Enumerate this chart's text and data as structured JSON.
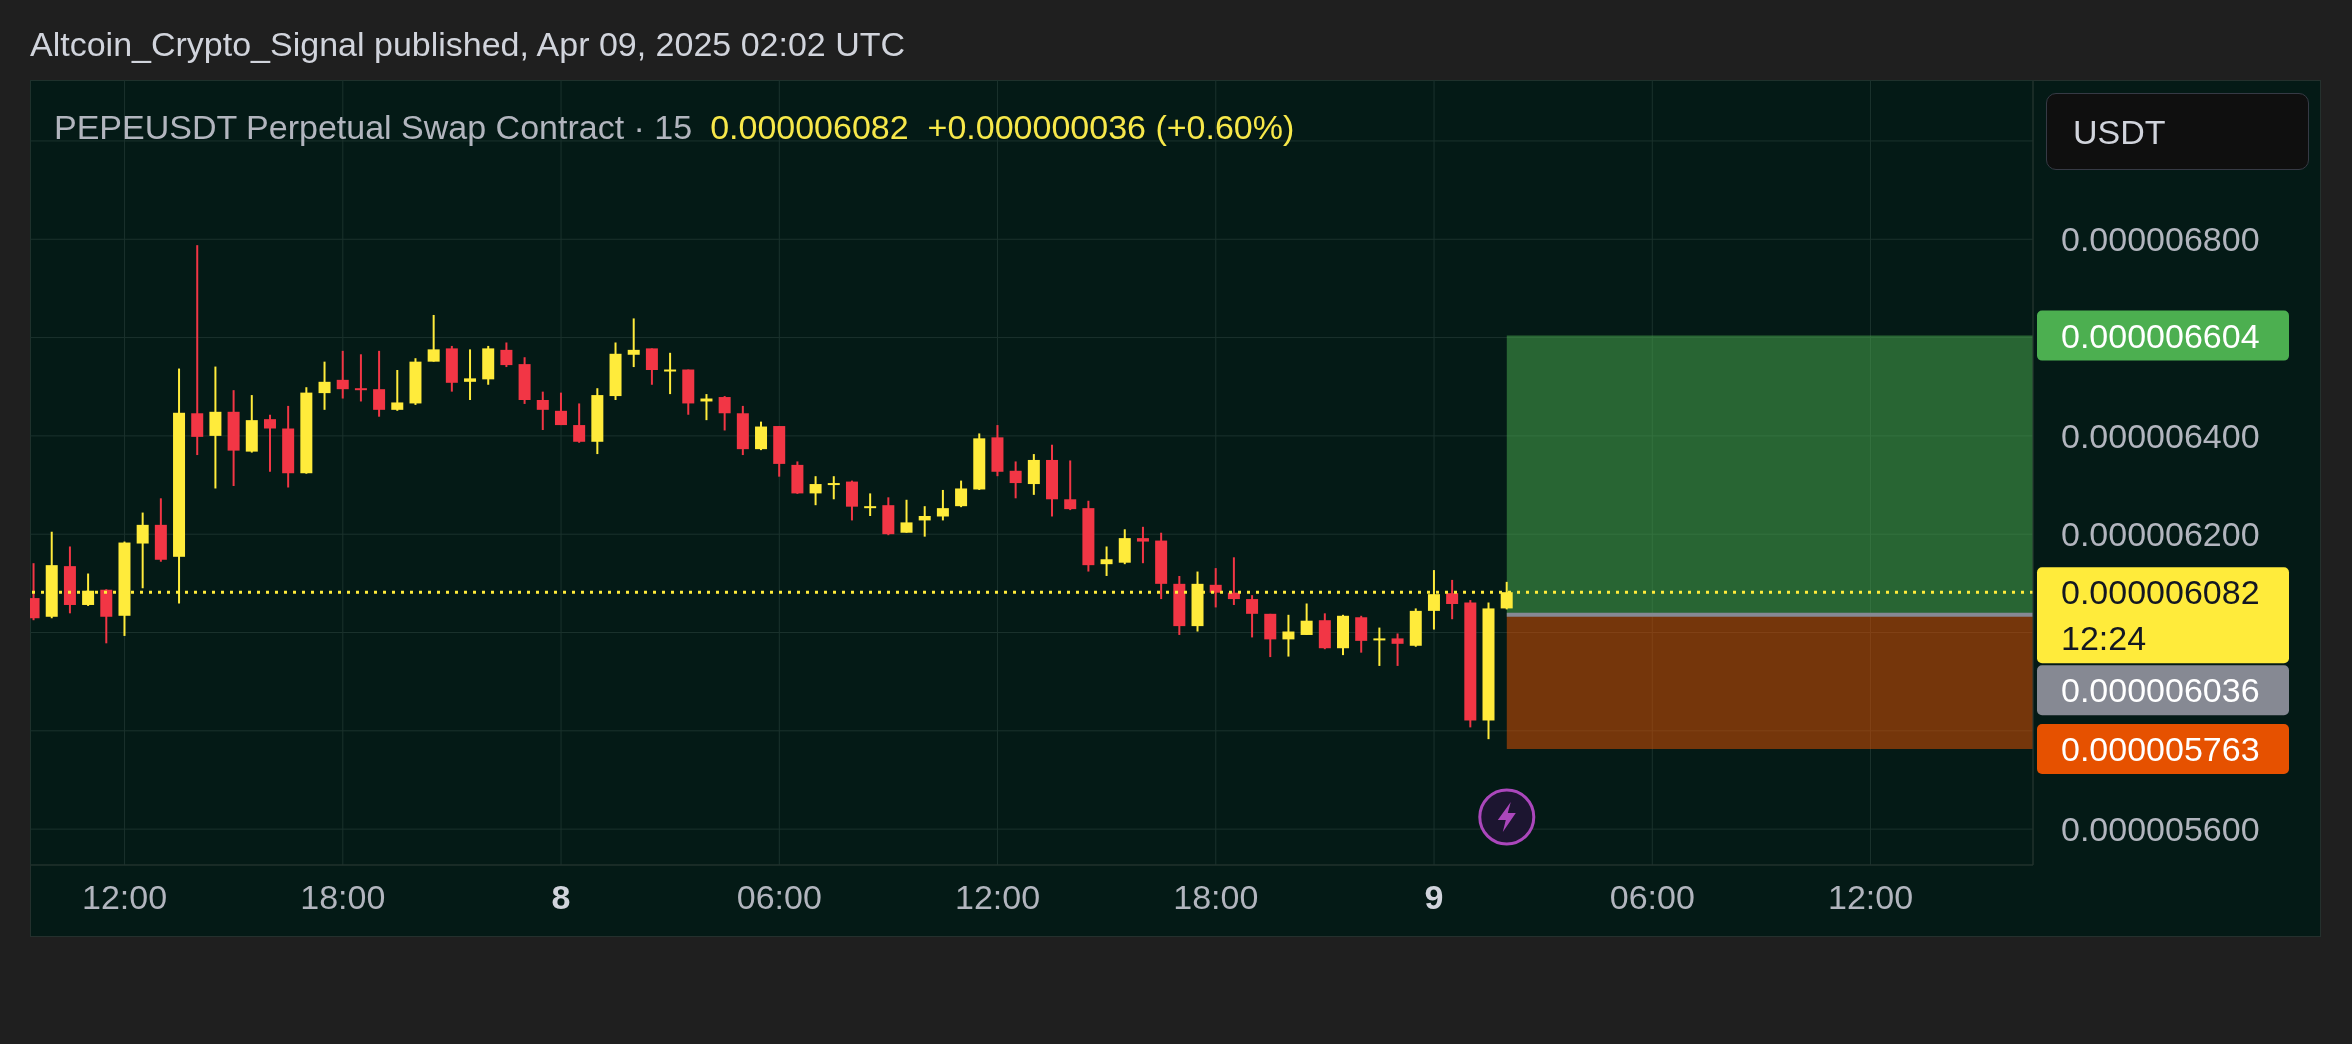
{
  "chart_data": {
    "type": "candlestick",
    "title": "PEPEUSDT Perpetual Swap Contract · 15",
    "subtitle": "0.000006082  +0.000000036 (+0.60%)",
    "ylabel": "USDT",
    "annotations": [
      "Altcoin_Crypto_Signal published, Apr 09, 2025 02:02 UTC"
    ],
    "x": [
      "2025-04-07T09:30",
      "2025-04-07T10:00",
      "2025-04-07T10:30",
      "2025-04-07T11:00",
      "2025-04-07T11:30",
      "2025-04-07T12:00",
      "2025-04-07T12:30",
      "2025-04-07T13:00",
      "2025-04-07T13:30",
      "2025-04-07T14:00",
      "2025-04-07T14:30",
      "2025-04-07T15:00",
      "2025-04-07T15:30",
      "2025-04-07T16:00",
      "2025-04-07T16:30",
      "2025-04-07T17:00",
      "2025-04-07T17:30",
      "2025-04-07T18:00",
      "2025-04-07T18:30",
      "2025-04-07T19:00",
      "2025-04-07T19:30",
      "2025-04-07T20:00",
      "2025-04-07T20:30",
      "2025-04-07T21:00",
      "2025-04-07T21:30",
      "2025-04-07T22:00",
      "2025-04-07T22:30",
      "2025-04-07T23:00",
      "2025-04-07T23:30",
      "2025-04-08T00:00",
      "2025-04-08T00:30",
      "2025-04-08T01:00",
      "2025-04-08T01:30",
      "2025-04-08T02:00",
      "2025-04-08T02:30",
      "2025-04-08T03:00",
      "2025-04-08T03:30",
      "2025-04-08T04:00",
      "2025-04-08T04:30",
      "2025-04-08T05:00",
      "2025-04-08T05:30",
      "2025-04-08T06:00",
      "2025-04-08T06:30",
      "2025-04-08T07:00",
      "2025-04-08T07:30",
      "2025-04-08T08:00",
      "2025-04-08T08:30",
      "2025-04-08T09:00",
      "2025-04-08T09:30",
      "2025-04-08T10:00",
      "2025-04-08T10:30",
      "2025-04-08T11:00",
      "2025-04-08T11:30",
      "2025-04-08T12:00",
      "2025-04-08T12:30",
      "2025-04-08T13:00",
      "2025-04-08T13:30",
      "2025-04-08T14:00",
      "2025-04-08T14:30",
      "2025-04-08T15:00",
      "2025-04-08T15:30",
      "2025-04-08T16:00",
      "2025-04-08T16:30",
      "2025-04-08T17:00",
      "2025-04-08T17:30",
      "2025-04-08T18:00",
      "2025-04-08T18:30",
      "2025-04-08T19:00",
      "2025-04-08T19:30",
      "2025-04-08T20:00",
      "2025-04-08T20:30",
      "2025-04-08T21:00",
      "2025-04-08T21:30",
      "2025-04-08T22:00",
      "2025-04-08T22:30",
      "2025-04-08T23:00",
      "2025-04-08T23:30",
      "2025-04-09T00:00",
      "2025-04-09T00:30",
      "2025-04-09T01:00",
      "2025-04-09T01:30",
      "2025-04-09T02:00"
    ],
    "ohlc": [
      [
        6.07e-06,
        6.141e-06,
        6.025e-06,
        6.029e-06
      ],
      [
        6.032e-06,
        6.205e-06,
        6.029e-06,
        6.137e-06
      ],
      [
        6.135e-06,
        6.175e-06,
        6.039e-06,
        6.056e-06
      ],
      [
        6.056e-06,
        6.12e-06,
        6.054e-06,
        6.085e-06
      ],
      [
        6.087e-06,
        6.088e-06,
        5.978e-06,
        6.032e-06
      ],
      [
        6.034e-06,
        6.185e-06,
        5.993e-06,
        6.183e-06
      ],
      [
        6.181e-06,
        6.244e-06,
        6.09e-06,
        6.219e-06
      ],
      [
        6.219e-06,
        6.273e-06,
        6.144e-06,
        6.148e-06
      ],
      [
        6.154e-06,
        6.537e-06,
        6.059e-06,
        6.447e-06
      ],
      [
        6.446e-06,
        6.788e-06,
        6.361e-06,
        6.398e-06
      ],
      [
        6.4e-06,
        6.541e-06,
        6.293e-06,
        6.449e-06
      ],
      [
        6.449e-06,
        6.493e-06,
        6.298e-06,
        6.37e-06
      ],
      [
        6.368e-06,
        6.483e-06,
        6.366e-06,
        6.432e-06
      ],
      [
        6.434e-06,
        6.443e-06,
        6.327e-06,
        6.415e-06
      ],
      [
        6.415e-06,
        6.461e-06,
        6.295e-06,
        6.324e-06
      ],
      [
        6.324e-06,
        6.499e-06,
        6.323e-06,
        6.488e-06
      ],
      [
        6.487e-06,
        6.551e-06,
        6.453e-06,
        6.51e-06
      ],
      [
        6.514e-06,
        6.573e-06,
        6.476e-06,
        6.495e-06
      ],
      [
        6.497e-06,
        6.566e-06,
        6.47e-06,
        6.493e-06
      ],
      [
        6.495e-06,
        6.573e-06,
        6.439e-06,
        6.453e-06
      ],
      [
        6.453e-06,
        6.534e-06,
        6.451e-06,
        6.468e-06
      ],
      [
        6.466e-06,
        6.558e-06,
        6.463e-06,
        6.551e-06
      ],
      [
        6.551e-06,
        6.646e-06,
        6.551e-06,
        6.576e-06
      ],
      [
        6.578e-06,
        6.583e-06,
        6.49e-06,
        6.508e-06
      ],
      [
        6.51e-06,
        6.576e-06,
        6.473e-06,
        6.517e-06
      ],
      [
        6.515e-06,
        6.583e-06,
        6.504e-06,
        6.578e-06
      ],
      [
        6.575e-06,
        6.59e-06,
        6.54e-06,
        6.544e-06
      ],
      [
        6.546e-06,
        6.56e-06,
        6.465e-06,
        6.473e-06
      ],
      [
        6.473e-06,
        6.49e-06,
        6.412e-06,
        6.453e-06
      ],
      [
        6.451e-06,
        6.488e-06,
        6.422e-06,
        6.422e-06
      ],
      [
        6.422e-06,
        6.466e-06,
        6.386e-06,
        6.388e-06
      ],
      [
        6.388e-06,
        6.497e-06,
        6.363e-06,
        6.483e-06
      ],
      [
        6.481e-06,
        6.59e-06,
        6.473e-06,
        6.567e-06
      ],
      [
        6.565e-06,
        6.639e-06,
        6.54e-06,
        6.575e-06
      ],
      [
        6.578e-06,
        6.578e-06,
        6.504e-06,
        6.534e-06
      ],
      [
        6.531e-06,
        6.569e-06,
        6.485e-06,
        6.535e-06
      ],
      [
        6.535e-06,
        6.535e-06,
        6.443e-06,
        6.466e-06
      ],
      [
        6.47e-06,
        6.485e-06,
        6.432e-06,
        6.476e-06
      ],
      [
        6.479e-06,
        6.481e-06,
        6.411e-06,
        6.446e-06
      ],
      [
        6.446e-06,
        6.461e-06,
        6.361e-06,
        6.373e-06
      ],
      [
        6.373e-06,
        6.429e-06,
        6.371e-06,
        6.419e-06
      ],
      [
        6.42e-06,
        6.42e-06,
        6.317e-06,
        6.343e-06
      ],
      [
        6.341e-06,
        6.348e-06,
        6.282e-06,
        6.283e-06
      ],
      [
        6.283e-06,
        6.318e-06,
        6.259e-06,
        6.302e-06
      ],
      [
        6.304e-06,
        6.318e-06,
        6.271e-06,
        6.304e-06
      ],
      [
        6.307e-06,
        6.309e-06,
        6.228e-06,
        6.256e-06
      ],
      [
        6.253e-06,
        6.283e-06,
        6.237e-06,
        6.257e-06
      ],
      [
        6.259e-06,
        6.275e-06,
        6.198e-06,
        6.2e-06
      ],
      [
        6.203e-06,
        6.27e-06,
        6.203e-06,
        6.224e-06
      ],
      [
        6.228e-06,
        6.257e-06,
        6.195e-06,
        6.237e-06
      ],
      [
        6.236e-06,
        6.29e-06,
        6.228e-06,
        6.253e-06
      ],
      [
        6.257e-06,
        6.309e-06,
        6.255e-06,
        6.293e-06
      ],
      [
        6.291e-06,
        6.405e-06,
        6.29e-06,
        6.395e-06
      ],
      [
        6.397e-06,
        6.422e-06,
        6.318e-06,
        6.327e-06
      ],
      [
        6.329e-06,
        6.348e-06,
        6.273e-06,
        6.304e-06
      ],
      [
        6.302e-06,
        6.363e-06,
        6.28e-06,
        6.351e-06
      ],
      [
        6.351e-06,
        6.382e-06,
        6.236e-06,
        6.271e-06
      ],
      [
        6.271e-06,
        6.35e-06,
        6.249e-06,
        6.251e-06
      ],
      [
        6.253e-06,
        6.268e-06,
        6.124e-06,
        6.137e-06
      ],
      [
        6.139e-06,
        6.175e-06,
        6.115e-06,
        6.149e-06
      ],
      [
        6.142e-06,
        6.21e-06,
        6.139e-06,
        6.192e-06
      ],
      [
        6.192e-06,
        6.215e-06,
        6.141e-06,
        6.185e-06
      ],
      [
        6.187e-06,
        6.203e-06,
        6.068e-06,
        6.099e-06
      ],
      [
        6.099e-06,
        6.115e-06,
        5.995e-06,
        6.013e-06
      ],
      [
        6.013e-06,
        6.124e-06,
        6.002e-06,
        6.099e-06
      ],
      [
        6.097e-06,
        6.131e-06,
        6.051e-06,
        6.081e-06
      ],
      [
        6.081e-06,
        6.153e-06,
        6.056e-06,
        6.068e-06
      ],
      [
        6.068e-06,
        6.076e-06,
        5.99e-06,
        6.038e-06
      ],
      [
        6.038e-06,
        6.038e-06,
        5.95e-06,
        5.986e-06
      ],
      [
        5.986e-06,
        6.036e-06,
        5.951e-06,
        6.002e-06
      ],
      [
        5.995e-06,
        6.059e-06,
        5.995e-06,
        6.024e-06
      ],
      [
        6.025e-06,
        6.039e-06,
        5.966e-06,
        5.968e-06
      ],
      [
        5.968e-06,
        6.036e-06,
        5.954e-06,
        6.034e-06
      ],
      [
        6.031e-06,
        6.034e-06,
        5.959e-06,
        5.983e-06
      ],
      [
        5.986e-06,
        6.01e-06,
        5.932e-06,
        5.988e-06
      ],
      [
        5.988e-06,
        5.998e-06,
        5.932e-06,
        5.977e-06
      ],
      [
        5.973e-06,
        6.049e-06,
        5.971e-06,
        6.044e-06
      ],
      [
        6.044e-06,
        6.127e-06,
        6.006e-06,
        6.078e-06
      ],
      [
        6.08e-06,
        6.107e-06,
        6.027e-06,
        6.058e-06
      ],
      [
        6.061e-06,
        6.066e-06,
        5.807e-06,
        5.821e-06
      ],
      [
        5.821e-06,
        6.061e-06,
        5.783e-06,
        6.049e-06
      ],
      [
        6.049e-06,
        6.103e-06,
        6.047e-06,
        6.082e-06
      ]
    ],
    "colors": [
      "#f23645",
      "#ffeb3b",
      "#f23645",
      "#ffeb3b",
      "#f23645",
      "#ffeb3b",
      "#ffeb3b",
      "#f23645",
      "#ffeb3b",
      "#f23645",
      "#ffeb3b",
      "#f23645",
      "#ffeb3b",
      "#f23645",
      "#f23645",
      "#ffeb3b",
      "#ffeb3b",
      "#f23645",
      "#f23645",
      "#f23645",
      "#ffeb3b",
      "#ffeb3b",
      "#ffeb3b",
      "#f23645",
      "#ffeb3b",
      "#ffeb3b",
      "#f23645",
      "#f23645",
      "#f23645",
      "#f23645",
      "#f23645",
      "#ffeb3b",
      "#ffeb3b",
      "#ffeb3b",
      "#f23645",
      "#ffeb3b",
      "#f23645",
      "#ffeb3b",
      "#f23645",
      "#f23645",
      "#ffeb3b",
      "#f23645",
      "#f23645",
      "#ffeb3b",
      "#ffeb3b",
      "#f23645",
      "#ffeb3b",
      "#f23645",
      "#ffeb3b",
      "#ffeb3b",
      "#ffeb3b",
      "#ffeb3b",
      "#ffeb3b",
      "#f23645",
      "#f23645",
      "#ffeb3b",
      "#f23645",
      "#f23645",
      "#f23645",
      "#ffeb3b",
      "#ffeb3b",
      "#f23645",
      "#f23645",
      "#f23645",
      "#ffeb3b",
      "#f23645",
      "#f23645",
      "#f23645",
      "#f23645",
      "#ffeb3b",
      "#ffeb3b",
      "#f23645",
      "#ffeb3b",
      "#f23645",
      "#ffeb3b",
      "#f23645",
      "#ffeb3b",
      "#ffeb3b",
      "#f23645",
      "#f23645",
      "#ffeb3b",
      "#ffeb3b"
    ],
    "xlim": [
      "2025-04-07T09:24",
      "2025-04-09T16:28"
    ],
    "xticks": [
      {
        "value": "2025-04-07T12:00",
        "label": "12:00"
      },
      {
        "value": "2025-04-07T18:00",
        "label": "18:00"
      },
      {
        "value": "2025-04-08T00:00",
        "label": "8"
      },
      {
        "value": "2025-04-08T06:00",
        "label": "06:00"
      },
      {
        "value": "2025-04-08T12:00",
        "label": "12:00"
      },
      {
        "value": "2025-04-08T18:00",
        "label": "18:00"
      },
      {
        "value": "2025-04-09T00:00",
        "label": "9"
      },
      {
        "value": "2025-04-09T06:00",
        "label": "06:00"
      },
      {
        "value": "2025-04-09T12:00",
        "label": "12:00"
      }
    ],
    "ylim": [
      5.527e-06,
      7.124e-06
    ],
    "yticks": [
      {
        "value": 5.6e-06,
        "label": "0.000005600"
      },
      {
        "value": 5.8e-06,
        "label": null
      },
      {
        "value": 6e-06,
        "label": null
      },
      {
        "value": 6.2e-06,
        "label": "0.000006200"
      },
      {
        "value": 6.4e-06,
        "label": "0.000006400"
      },
      {
        "value": 6.6e-06,
        "label": null
      },
      {
        "value": 6.8e-06,
        "label": "0.000006800"
      },
      {
        "value": 7e-06,
        "label": null
      }
    ],
    "grid": true,
    "ref_lines": [
      {
        "axis": "y",
        "value": 6.082e-06,
        "label": "0.000006082\n12:24",
        "color": "#ffeb3b",
        "line_style": "dotted"
      },
      {
        "axis": "y",
        "value": 6.036e-06,
        "label": "0.000006036",
        "color": "#868993",
        "line_style": "solid"
      }
    ],
    "bands": [
      {
        "axis": "y",
        "from": 6.036e-06,
        "to": 6.604e-06,
        "label": "0.000006604",
        "color": "#4caf50"
      },
      {
        "axis": "y",
        "from": 6.036e-06,
        "to": 5.763e-06,
        "label": "0.000005763",
        "color": "#e65100"
      }
    ]
  }
}
